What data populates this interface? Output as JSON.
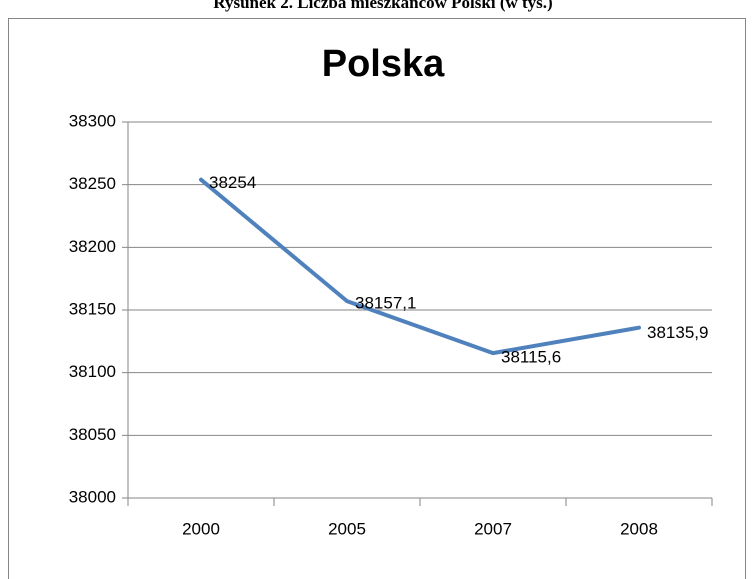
{
  "chart_data": {
    "type": "line",
    "caption": "Rysunek 2. Liczba mieszkańców Polski (w tys.)",
    "title": "Polska",
    "categories": [
      "2000",
      "2005",
      "2007",
      "2008"
    ],
    "series": [
      {
        "name": "Polska",
        "color": "#4f81bd",
        "values": [
          38254,
          38157.1,
          38115.6,
          38135.9
        ],
        "value_labels": [
          "38254",
          "38157,1",
          "38115,6",
          "38135,9"
        ]
      }
    ],
    "ylim": [
      38000,
      38300
    ],
    "yticks": [
      38000,
      38050,
      38100,
      38150,
      38200,
      38250,
      38300
    ],
    "grid": true
  }
}
